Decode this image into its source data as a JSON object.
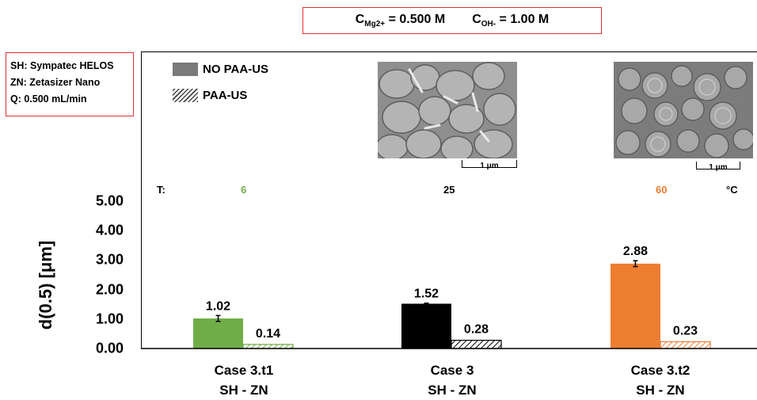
{
  "header": {
    "conc_mg_main": "C",
    "conc_mg_sub": "Mg2+",
    "conc_mg_value": " = 0.500 M",
    "conc_oh_main": "C",
    "conc_oh_sub": "OH-",
    "conc_oh_value": " = 1.00 M"
  },
  "info": {
    "line1": "SH: Sympatec HELOS",
    "line2": "ZN: Zetasizer Nano",
    "line3": "Q: 0.500 mL/min"
  },
  "legend": {
    "solid": "NO PAA-US",
    "hatched": "PAA-US"
  },
  "sem": {
    "left_scale": "1 μm",
    "right_scale": "1 μm"
  },
  "temperature": {
    "prefix": "T:",
    "values": [
      "6",
      "25",
      "60"
    ],
    "unit": "°C"
  },
  "colors": {
    "case_t1": "#70ad47",
    "case_3": "#000000",
    "case_t2": "#ed7d31",
    "frame_red": "#e03030"
  },
  "chart_data": {
    "type": "bar",
    "categories": [
      "Case 3.t1",
      "Case 3",
      "Case 3.t2"
    ],
    "subcategories": [
      "SH  -  ZN",
      "SH  -  ZN",
      "SH  -  ZN"
    ],
    "series": [
      {
        "name": "NO PAA-US",
        "values": [
          1.02,
          1.52,
          2.88
        ],
        "labels": [
          "1.02",
          "1.52",
          "2.88"
        ],
        "error": [
          0.1,
          0.02,
          0.1
        ],
        "fill": "solid"
      },
      {
        "name": "PAA-US",
        "values": [
          0.14,
          0.28,
          0.23
        ],
        "labels": [
          "0.14",
          "0.28",
          "0.23"
        ],
        "fill": "hatched"
      }
    ],
    "ylabel": "d(0.5) [μm]",
    "yticks": [
      "0.00",
      "1.00",
      "2.00",
      "3.00",
      "4.00",
      "5.00"
    ],
    "ylim": [
      0,
      5
    ],
    "grid": false,
    "legend_position": "top-left"
  }
}
